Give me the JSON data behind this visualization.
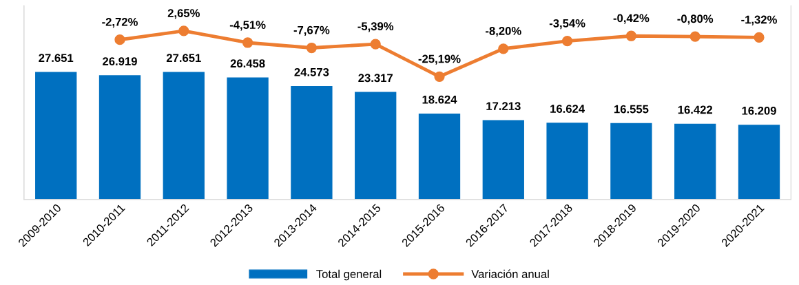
{
  "chart_data": {
    "type": "bar",
    "categories": [
      "2009-2010",
      "2010-2011",
      "2011-2012",
      "2012-2013",
      "2013-2014",
      "2014-2015",
      "2015-2016",
      "2016-2017",
      "2017-2018",
      "2018-2019",
      "2019-2020",
      "2020-2021"
    ],
    "series": [
      {
        "name": "Total general",
        "color": "#0070c0",
        "values": [
          27651,
          26919,
          27651,
          26458,
          24573,
          23317,
          18624,
          17213,
          16624,
          16555,
          16422,
          16209
        ],
        "value_labels": [
          "27.651",
          "26.919",
          "27.651",
          "26.458",
          "24.573",
          "23.317",
          "18.624",
          "17.213",
          "16.624",
          "16.555",
          "16.422",
          "16.209"
        ]
      },
      {
        "name": "Variación anual",
        "type": "line",
        "axis": "y2",
        "color": "#ed7d31",
        "marker": "circle",
        "values": [
          null,
          -2.72,
          2.65,
          -4.51,
          -7.67,
          -5.39,
          -25.19,
          -8.2,
          -3.54,
          -0.42,
          -0.8,
          -1.32
        ],
        "value_labels": [
          null,
          "-2,72%",
          "2,65%",
          "-4,51%",
          "-7,67%",
          "-5,39%",
          "-25,19%",
          "-8,20%",
          "-3,54%",
          "-0,42%",
          "-0,80%",
          "-1,32%"
        ]
      }
    ],
    "ylim": [
      0,
      42000
    ],
    "y2lim": [
      -100,
      18
    ],
    "tick_labels": "x",
    "grid": false,
    "legend": "bottom"
  }
}
